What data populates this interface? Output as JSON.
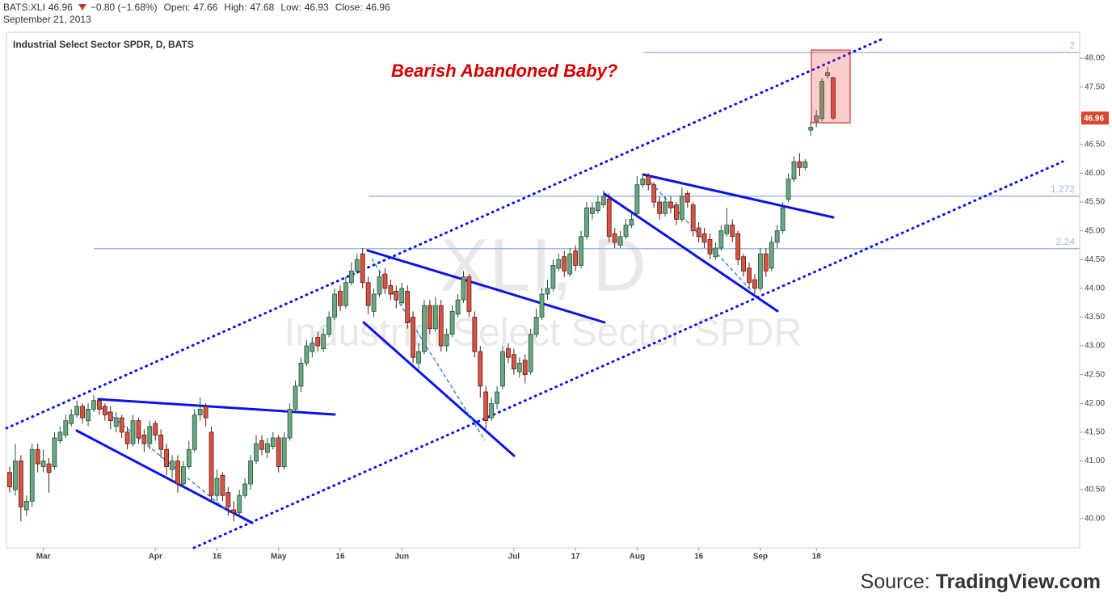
{
  "header": {
    "symbol": "BATS:XLI",
    "change": "−0.80 (−1.68%)",
    "open_label": "Open:",
    "high_label": "High:",
    "low_label": "Low:",
    "close_label": "Close:",
    "date": "September 21, 2013"
  },
  "source": {
    "label": "Source:",
    "name": "TradingView.com"
  },
  "chart_data": {
    "type": "candlestick",
    "title": "Industrial Select Sector SPDR, D, BATS",
    "watermark_symbol": "XLI, D",
    "watermark_name": "Industrial Select Sector SPDR",
    "annotation": "Bearish Abandoned Baby?",
    "up_color": "#6ba583",
    "up_border": "#225437",
    "down_color": "#d75442",
    "down_border": "#5b1a13",
    "categories": [
      null,
      null,
      null,
      null,
      null,
      null,
      "Mar",
      null,
      null,
      null,
      null,
      null,
      null,
      null,
      null,
      null,
      null,
      null,
      null,
      null,
      null,
      null,
      null,
      null,
      null,
      null,
      "Apr",
      null,
      null,
      null,
      null,
      null,
      null,
      null,
      null,
      null,
      null,
      "16",
      null,
      null,
      null,
      null,
      null,
      null,
      null,
      null,
      null,
      null,
      "May",
      null,
      null,
      null,
      null,
      null,
      null,
      null,
      null,
      null,
      null,
      "16",
      null,
      null,
      null,
      null,
      null,
      null,
      null,
      null,
      null,
      null,
      "Jun",
      null,
      null,
      null,
      null,
      null,
      null,
      null,
      null,
      null,
      null,
      null,
      null,
      null,
      null,
      null,
      null,
      null,
      null,
      null,
      "Jul",
      null,
      null,
      null,
      null,
      null,
      null,
      null,
      null,
      null,
      null,
      "17",
      null,
      null,
      null,
      null,
      null,
      null,
      null,
      null,
      null,
      null,
      "Aug",
      null,
      null,
      null,
      null,
      null,
      null,
      null,
      null,
      null,
      null,
      "16",
      null,
      null,
      null,
      null,
      null,
      null,
      null,
      null,
      null,
      null,
      "Sep",
      null,
      null,
      null,
      null,
      null,
      null,
      null,
      null,
      null,
      "18",
      null,
      null,
      null
    ],
    "open": [
      40.8,
      40.5,
      41.0,
      40.15,
      40.3,
      41.2,
      40.9,
      40.95,
      40.9,
      41.35,
      41.45,
      41.65,
      41.8,
      41.95,
      41.7,
      41.9,
      42.05,
      41.95,
      41.85,
      41.6,
      41.75,
      41.5,
      41.3,
      41.7,
      41.45,
      41.3,
      41.65,
      41.45,
      41.2,
      40.85,
      41.0,
      40.6,
      40.9,
      41.2,
      41.8,
      41.95,
      41.5,
      40.4,
      40.75,
      40.45,
      40.15,
      40.1,
      40.4,
      40.6,
      41.0,
      41.35,
      41.15,
      41.25,
      41.4,
      40.9,
      41.4,
      41.9,
      42.3,
      42.7,
      42.9,
      43.15,
      42.95,
      43.2,
      43.5,
      43.95,
      43.7,
      44.1,
      44.3,
      44.6,
      44.1,
      43.6,
      43.9,
      44.25,
      44.05,
      43.95,
      43.75,
      43.95,
      43.5,
      42.7,
      42.9,
      43.7,
      43.3,
      43.7,
      43.0,
      43.2,
      43.55,
      43.8,
      44.2,
      43.5,
      42.9,
      42.2,
      41.75,
      42.0,
      42.3,
      42.95,
      42.85,
      42.55,
      42.75,
      42.55,
      43.2,
      43.5,
      43.9,
      44.0,
      44.35,
      44.55,
      44.25,
      44.65,
      44.4,
      44.9,
      45.3,
      45.35,
      45.45,
      45.55,
      44.95,
      44.75,
      44.9,
      45.1,
      45.3,
      45.8,
      45.95,
      45.8,
      45.5,
      45.3,
      45.5,
      45.45,
      45.2,
      45.65,
      45.45,
      45.05,
      44.95,
      44.85,
      44.55,
      44.7,
      44.95,
      45.1,
      44.95,
      44.55,
      44.35,
      44.15,
      44.0,
      44.6,
      44.35,
      44.8,
      45.0,
      45.55,
      45.9,
      46.2,
      46.1,
      46.75,
      46.9,
      46.95,
      47.7,
      47.66
    ],
    "high": [
      40.9,
      41.3,
      41.1,
      40.4,
      41.3,
      41.3,
      41.2,
      41.05,
      41.5,
      41.6,
      41.8,
      41.9,
      42.05,
      42.0,
      42.0,
      42.15,
      42.1,
      42.0,
      41.95,
      41.85,
      41.8,
      41.6,
      41.8,
      41.75,
      41.55,
      41.7,
      41.7,
      41.55,
      41.3,
      41.1,
      41.1,
      41.0,
      41.35,
      41.9,
      42.1,
      42.0,
      41.6,
      40.85,
      40.8,
      40.55,
      40.3,
      40.5,
      40.7,
      41.1,
      41.45,
      41.45,
      41.4,
      41.5,
      41.45,
      41.5,
      42.0,
      42.4,
      42.8,
      43.1,
      43.15,
      43.25,
      43.3,
      43.6,
      44.0,
      44.05,
      44.2,
      44.45,
      44.6,
      44.7,
      44.2,
      44.0,
      44.3,
      44.35,
      44.15,
      44.05,
      44.1,
      44.05,
      43.6,
      43.05,
      43.8,
      43.8,
      43.85,
      43.8,
      43.3,
      43.7,
      43.9,
      44.3,
      44.25,
      43.6,
      43.0,
      42.3,
      42.1,
      42.3,
      43.0,
      43.05,
      42.95,
      42.8,
      42.85,
      43.3,
      43.65,
      44.0,
      44.15,
      44.5,
      44.6,
      44.65,
      44.7,
      44.75,
      45.0,
      45.5,
      45.5,
      45.6,
      45.7,
      45.65,
      45.05,
      45.0,
      45.2,
      45.35,
      45.95,
      46.0,
      46.0,
      45.85,
      45.6,
      45.6,
      45.6,
      45.5,
      45.75,
      45.7,
      45.5,
      45.15,
      45.05,
      44.95,
      44.8,
      45.1,
      45.4,
      45.2,
      45.0,
      44.6,
      44.45,
      44.25,
      44.7,
      44.7,
      44.9,
      45.1,
      45.5,
      46.0,
      46.3,
      46.35,
      46.25,
      46.9,
      47.1,
      47.65,
      47.85,
      47.68
    ],
    "low": [
      40.45,
      40.4,
      39.95,
      40.05,
      40.2,
      40.8,
      40.8,
      40.45,
      40.85,
      41.3,
      41.4,
      41.6,
      41.75,
      41.65,
      41.6,
      41.85,
      41.8,
      41.7,
      41.55,
      41.5,
      41.4,
      41.2,
      41.25,
      41.3,
      41.15,
      41.2,
      41.35,
      41.05,
      40.75,
      40.7,
      40.45,
      40.55,
      40.85,
      41.15,
      41.7,
      41.6,
      40.3,
      40.3,
      40.3,
      40.05,
      39.95,
      40.05,
      40.35,
      40.5,
      40.95,
      41.1,
      41.05,
      41.2,
      40.8,
      40.85,
      41.35,
      41.85,
      42.2,
      42.65,
      42.8,
      42.9,
      42.9,
      43.15,
      43.45,
      43.6,
      43.65,
      44.05,
      44.25,
      44.0,
      43.55,
      43.5,
      43.85,
      43.9,
      43.8,
      43.65,
      43.7,
      43.3,
      42.7,
      42.6,
      42.85,
      43.2,
      43.25,
      42.9,
      42.9,
      43.15,
      43.5,
      43.75,
      43.5,
      42.8,
      42.1,
      41.55,
      41.7,
      41.9,
      42.25,
      42.7,
      42.5,
      42.45,
      42.35,
      42.5,
      43.15,
      43.45,
      43.8,
      43.95,
      44.3,
      44.2,
      44.2,
      44.3,
      44.35,
      44.85,
      45.2,
      45.3,
      45.4,
      44.8,
      44.7,
      44.7,
      44.85,
      45.05,
      45.25,
      45.75,
      45.7,
      45.4,
      45.2,
      45.25,
      45.3,
      45.1,
      45.15,
      45.4,
      44.9,
      44.8,
      44.7,
      44.5,
      44.5,
      44.65,
      44.9,
      44.8,
      44.4,
      44.2,
      44.0,
      43.9,
      43.95,
      44.2,
      44.3,
      44.7,
      44.95,
      45.5,
      45.85,
      45.95,
      46.05,
      46.65,
      46.8,
      46.9,
      47.65,
      46.93
    ],
    "close": [
      40.55,
      41.0,
      40.2,
      40.3,
      41.2,
      40.95,
      41.0,
      40.8,
      41.4,
      41.5,
      41.7,
      41.8,
      41.95,
      41.75,
      41.9,
      42.05,
      41.9,
      41.8,
      41.7,
      41.75,
      41.5,
      41.3,
      41.7,
      41.4,
      41.3,
      41.6,
      41.45,
      41.2,
      40.9,
      41.0,
      40.6,
      40.9,
      41.2,
      41.8,
      41.9,
      41.75,
      40.4,
      40.7,
      40.4,
      40.2,
      40.1,
      40.4,
      40.6,
      41.0,
      41.3,
      41.2,
      41.3,
      41.4,
      40.9,
      41.4,
      41.9,
      42.3,
      42.7,
      43.0,
      43.05,
      43.0,
      43.2,
      43.5,
      43.9,
      43.7,
      44.1,
      44.3,
      44.5,
      44.1,
      43.7,
      43.9,
      44.2,
      44.0,
      43.9,
      43.8,
      44.0,
      43.4,
      42.8,
      42.9,
      43.7,
      43.3,
      43.7,
      43.0,
      43.2,
      43.6,
      43.8,
      44.2,
      43.6,
      42.9,
      42.3,
      41.7,
      42.0,
      42.2,
      42.9,
      42.8,
      42.6,
      42.7,
      42.5,
      43.2,
      43.5,
      43.9,
      44.0,
      44.4,
      44.5,
      44.3,
      44.6,
      44.4,
      44.9,
      45.4,
      45.4,
      45.5,
      45.6,
      44.9,
      44.8,
      44.9,
      45.1,
      45.2,
      45.8,
      45.9,
      45.8,
      45.5,
      45.3,
      45.5,
      45.4,
      45.2,
      45.6,
      45.5,
      45.0,
      44.9,
      44.8,
      44.6,
      44.7,
      45.0,
      45.1,
      44.9,
      44.5,
      44.3,
      44.1,
      44.0,
      44.6,
      44.3,
      44.8,
      45.0,
      45.4,
      45.9,
      46.2,
      46.1,
      46.2,
      46.8,
      47.0,
      47.6,
      47.75,
      46.96
    ],
    "ylim": [
      39.49,
      48.45
    ],
    "yticks": [
      {
        "value": 40,
        "label": "40.00"
      },
      {
        "value": 40.5,
        "label": "40.50"
      },
      {
        "value": 41,
        "label": "41.00"
      },
      {
        "value": 41.5,
        "label": "41.50"
      },
      {
        "value": 42,
        "label": "42.00"
      },
      {
        "value": 42.5,
        "label": "42.50"
      },
      {
        "value": 43,
        "label": "43.00"
      },
      {
        "value": 43.5,
        "label": "43.50"
      },
      {
        "value": 44,
        "label": "44.00"
      },
      {
        "value": 44.5,
        "label": "44.50"
      },
      {
        "value": 45,
        "label": "45.00"
      },
      {
        "value": 45.5,
        "label": "45.50"
      },
      {
        "value": 46,
        "label": "46.00"
      },
      {
        "value": 46.5,
        "label": "46.50"
      },
      {
        "value": 47,
        "label": "47.00"
      },
      {
        "value": 47.5,
        "label": "47.50"
      },
      {
        "value": 48,
        "label": "48.00"
      }
    ],
    "levels": [
      {
        "label": "2",
        "value": 48.1
      },
      {
        "label": "1.272",
        "value": 45.6
      },
      {
        "label": "2.24",
        "value": 44.69
      }
    ],
    "level_color": "#9dbbe6"
  }
}
